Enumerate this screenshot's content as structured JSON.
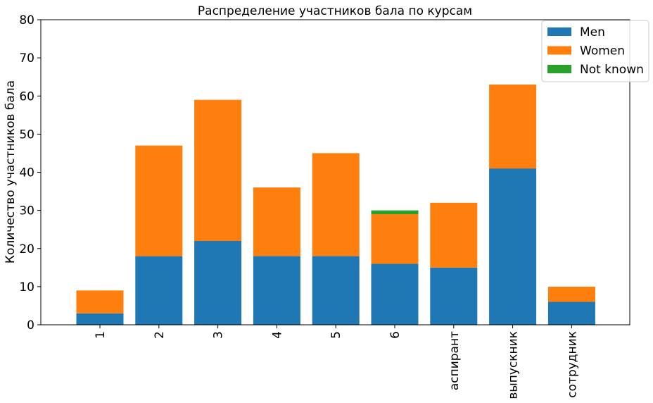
{
  "chart_data": {
    "type": "bar",
    "stacked": true,
    "title": "Распределение участников бала по курсам",
    "xlabel": "",
    "ylabel": "Количество участников бала",
    "ylim": [
      0,
      80
    ],
    "yticks": [
      0,
      10,
      20,
      30,
      40,
      50,
      60,
      70,
      80
    ],
    "categories": [
      "1",
      "2",
      "3",
      "4",
      "5",
      "6",
      "аспирант",
      "выпускник",
      "сотрудник"
    ],
    "series": [
      {
        "name": "Men",
        "color": "#1f77b4",
        "values": [
          3,
          18,
          22,
          18,
          18,
          16,
          15,
          41,
          6
        ]
      },
      {
        "name": "Women",
        "color": "#ff7f0e",
        "values": [
          6,
          29,
          37,
          18,
          27,
          13,
          17,
          22,
          4
        ]
      },
      {
        "name": "Not known",
        "color": "#2ca02c",
        "values": [
          0,
          0,
          0,
          0,
          0,
          1,
          0,
          0,
          0
        ]
      }
    ],
    "legend_position": "top-right",
    "grid": false
  }
}
